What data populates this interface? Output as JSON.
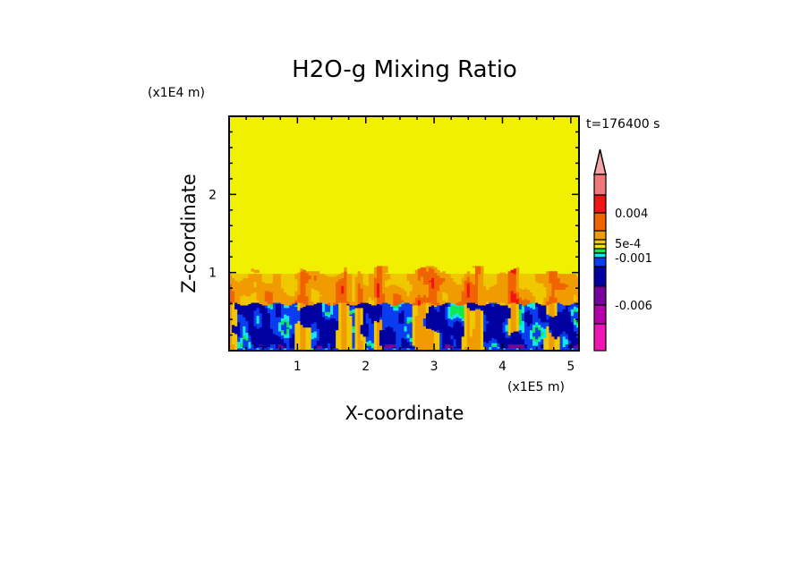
{
  "chart_data": {
    "type": "heatmap",
    "title": "H2O-g Mixing Ratio",
    "xlabel": "X-coordinate",
    "ylabel": "Z-coordinate",
    "x_unit": "(x1E5 m)",
    "y_unit": "(x1E4 m)",
    "time_label": "t=176400 s",
    "xlim": [
      0,
      5.12
    ],
    "ylim": [
      0,
      3
    ],
    "x_ticks": [
      "1",
      "2",
      "3",
      "4",
      "5"
    ],
    "y_ticks": [
      "1",
      "2"
    ],
    "colorbar": {
      "colors": [
        "#f4a4a4",
        "#f07878",
        "#f01414",
        "#f06400",
        "#f09c00",
        "#f0c800",
        "#f0e600",
        "#14e650",
        "#14e6f0",
        "#0a3cf0",
        "#0000a0",
        "#7800a0",
        "#b400aa",
        "#f014b4"
      ],
      "labels": [
        "0.004",
        "5e-4",
        "-0.001",
        "-0.006"
      ]
    },
    "field_layers": [
      {
        "z_range": [
          1.05,
          3
        ],
        "color": "#f0f000"
      },
      {
        "z_range": [
          0.6,
          1.05
        ],
        "colors": [
          "#f0c800",
          "#f09c00",
          "#f06400",
          "#f01414"
        ]
      },
      {
        "z_range": [
          0,
          0.6
        ],
        "colors": [
          "#0000a0",
          "#0a3cf0",
          "#14e6f0",
          "#14e650",
          "#f0c800",
          "#7800a0"
        ]
      }
    ]
  }
}
